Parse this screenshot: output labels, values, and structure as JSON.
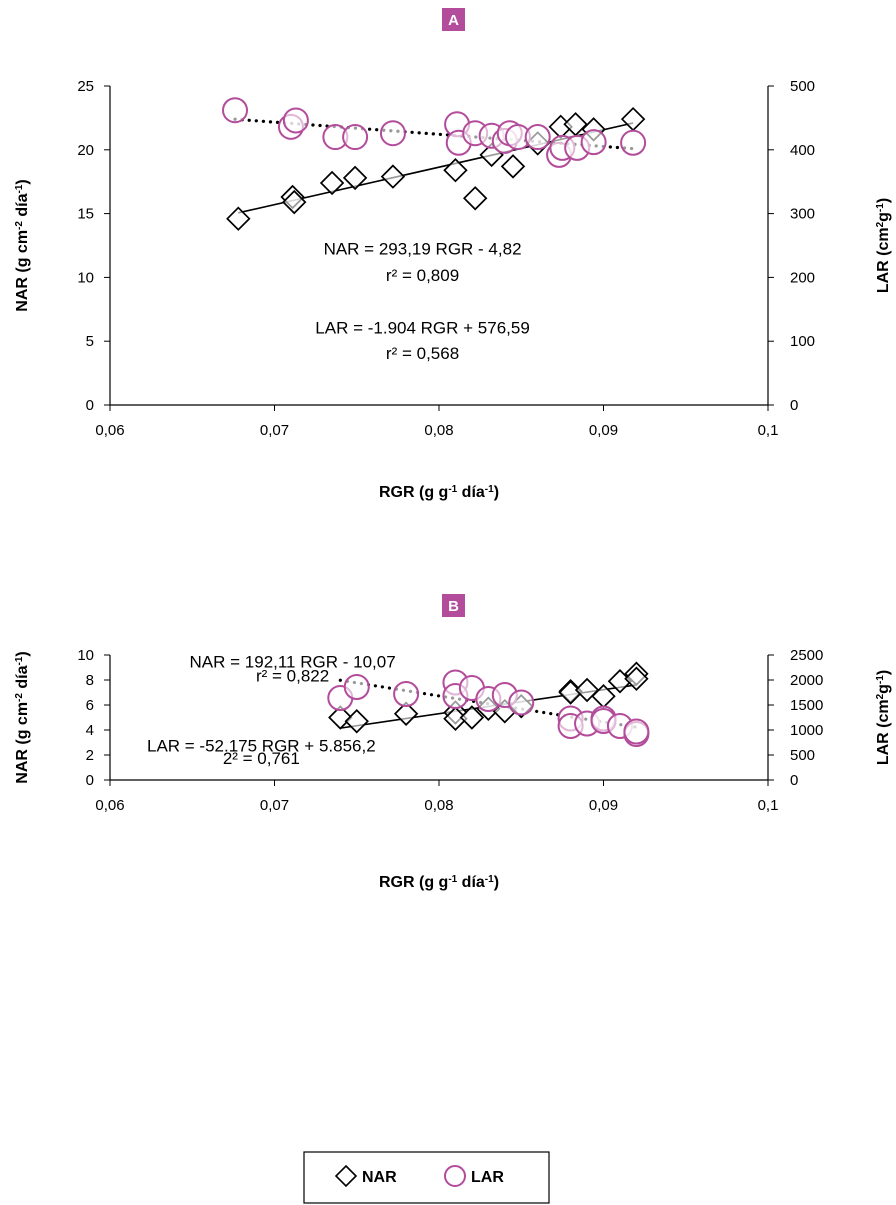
{
  "colors": {
    "nar": "#000000",
    "lar": "#b24c9b",
    "tag": "#b24c9b"
  },
  "legend": {
    "nar": "NAR",
    "lar": "LAR",
    "nar_marker": "diamond",
    "lar_marker": "circle"
  },
  "chart_data": [
    {
      "panel": "A",
      "type": "scatter",
      "xlabel": {
        "base": "RGR (g g",
        "sup1": "-1",
        "mid": " día",
        "sup2": "-1",
        "end": ")"
      },
      "ylabel_left": {
        "base": "NAR (g cm",
        "sup1": "-2",
        "mid": " día",
        "sup2": "-1",
        "end": ")"
      },
      "ylabel_right": {
        "base": "LAR (cm",
        "sup1": "2",
        "mid": "g",
        "sup2": "-1",
        "end": ")"
      },
      "xlim": [
        0.06,
        0.1
      ],
      "ylim_left": [
        0,
        25
      ],
      "ylim_right": [
        0,
        500
      ],
      "xticks": [
        "0,06",
        "0,07",
        "0,08",
        "0,09",
        "0,1"
      ],
      "yticks_left": [
        "0",
        "5",
        "10",
        "15",
        "20",
        "25"
      ],
      "yticks_right": [
        "0",
        "100",
        "200",
        "300",
        "400",
        "500"
      ],
      "series": [
        {
          "name": "NAR",
          "axis": "left",
          "marker": "diamond",
          "x": [
            0.0678,
            0.0711,
            0.0712,
            0.0735,
            0.0749,
            0.0772,
            0.081,
            0.0822,
            0.0832,
            0.0845,
            0.086,
            0.0874,
            0.0883,
            0.0894,
            0.0918
          ],
          "y": [
            14.6,
            16.3,
            15.9,
            17.4,
            17.8,
            17.9,
            18.4,
            16.2,
            19.6,
            18.7,
            20.5,
            21.8,
            22.0,
            21.6,
            22.4
          ]
        },
        {
          "name": "LAR",
          "axis": "right",
          "marker": "circle",
          "x": [
            0.0676,
            0.071,
            0.0713,
            0.0737,
            0.0749,
            0.0772,
            0.0811,
            0.0812,
            0.0822,
            0.0832,
            0.084,
            0.0843,
            0.0848,
            0.086,
            0.0873,
            0.0875,
            0.0884,
            0.0894,
            0.0918
          ],
          "y": [
            462,
            436,
            446,
            420,
            420,
            426,
            440,
            411,
            426,
            422,
            414,
            426,
            420,
            420,
            392,
            403,
            403,
            412,
            411
          ]
        }
      ],
      "trendlines": [
        {
          "series": "NAR",
          "axis": "left",
          "style": "solid",
          "x": [
            0.0678,
            0.0918
          ],
          "y": [
            15.06,
            22.1
          ]
        },
        {
          "series": "LAR",
          "axis": "right",
          "style": "dotted",
          "x": [
            0.0676,
            0.0918
          ],
          "y": [
            447.9,
            401.8
          ]
        }
      ],
      "annotations": [
        {
          "text": "NAR = 293,19  RGR - 4,82",
          "x": 0.079,
          "y_left": 11.8
        },
        {
          "text": "r² = 0,809",
          "x": 0.079,
          "y_left": 9.7
        },
        {
          "text": "LAR =  -1.904  RGR + 576,59",
          "x": 0.079,
          "y_left": 5.6
        },
        {
          "text": "r² = 0,568",
          "x": 0.079,
          "y_left": 3.6
        }
      ]
    },
    {
      "panel": "B",
      "type": "scatter",
      "xlabel": {
        "base": "RGR (g g",
        "sup1": "-1",
        "mid": " día",
        "sup2": "-1",
        "end": ")"
      },
      "ylabel_left": {
        "base": "NAR (g cm",
        "sup1": "-2",
        "mid": " día",
        "sup2": "-1",
        "end": ")"
      },
      "ylabel_right": {
        "base": "LAR (cm",
        "sup1": "2",
        "mid": "g",
        "sup2": "-1",
        "end": ")"
      },
      "xlim": [
        0.06,
        0.1
      ],
      "ylim_left": [
        0,
        10
      ],
      "ylim_right": [
        0,
        2500
      ],
      "xticks": [
        "0,06",
        "0,07",
        "0,08",
        "0,09",
        "0,1"
      ],
      "yticks_left": [
        "0",
        "2",
        "4",
        "6",
        "8",
        "10"
      ],
      "yticks_right": [
        "0",
        "500",
        "1000",
        "1500",
        "2000",
        "2500"
      ],
      "series": [
        {
          "name": "NAR",
          "axis": "left",
          "marker": "diamond",
          "x": [
            0.074,
            0.075,
            0.078,
            0.081,
            0.081,
            0.082,
            0.083,
            0.084,
            0.085,
            0.088,
            0.088,
            0.089,
            0.09,
            0.091,
            0.092,
            0.092
          ],
          "y": [
            5.0,
            4.7,
            5.3,
            5.4,
            4.9,
            5.0,
            5.7,
            5.5,
            5.9,
            7.1,
            7.0,
            7.2,
            6.7,
            7.9,
            8.5,
            8.1
          ]
        },
        {
          "name": "LAR",
          "axis": "right",
          "marker": "circle",
          "x": [
            0.074,
            0.075,
            0.078,
            0.081,
            0.081,
            0.082,
            0.083,
            0.084,
            0.085,
            0.088,
            0.088,
            0.089,
            0.09,
            0.09,
            0.091,
            0.092,
            0.092
          ],
          "y": [
            1640,
            1860,
            1720,
            1950,
            1680,
            1840,
            1620,
            1700,
            1550,
            1230,
            1080,
            1130,
            1230,
            1180,
            1080,
            920,
            970
          ]
        }
      ],
      "trendlines": [
        {
          "series": "NAR",
          "axis": "left",
          "style": "solid",
          "x": [
            0.074,
            0.092
          ],
          "y": [
            4.15,
            7.61
          ]
        },
        {
          "series": "LAR",
          "axis": "right",
          "style": "dotted",
          "x": [
            0.074,
            0.092
          ],
          "y": [
            1995,
            1056
          ]
        }
      ],
      "annotations": [
        {
          "text": "NAR = 192,11  RGR - 10,07",
          "x": 0.0711,
          "y_left": 9.0
        },
        {
          "text": "r² = 0,822",
          "x": 0.0711,
          "y_left": 7.9
        },
        {
          "text": "LAR = -52.175  RGR + 5.856,2",
          "x": 0.0692,
          "y_left": 2.3
        },
        {
          "text": "2² = 0,761",
          "x": 0.0692,
          "y_left": 1.3
        }
      ]
    }
  ]
}
